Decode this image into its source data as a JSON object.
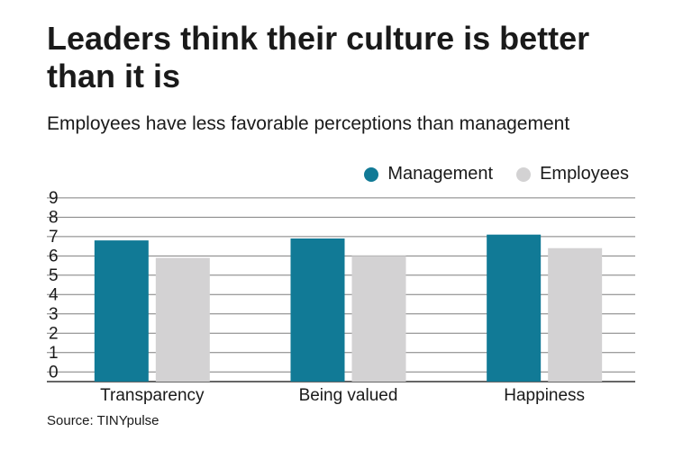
{
  "title": "Leaders think their culture is better than it is",
  "subtitle": "Employees have less favorable perceptions than management",
  "source": "Source: TINYpulse",
  "colors": {
    "management": "#117a96",
    "employees": "#d3d2d3",
    "grid": "#7f7f7f",
    "axis": "#333333"
  },
  "legend": [
    {
      "label": "Management",
      "color": "#117a96"
    },
    {
      "label": "Employees",
      "color": "#d3d2d3"
    }
  ],
  "chart_data": {
    "type": "bar",
    "title": "Leaders think their culture is better than it is",
    "subtitle": "Employees have less favorable perceptions than management",
    "categories": [
      "Transparency",
      "Being valued",
      "Happiness"
    ],
    "series": [
      {
        "name": "Management",
        "values": [
          6.8,
          6.9,
          7.1
        ],
        "color": "#117a96"
      },
      {
        "name": "Employees",
        "values": [
          5.9,
          6.0,
          6.4
        ],
        "color": "#d3d2d3"
      }
    ],
    "yticks": [
      0,
      1,
      2,
      3,
      4,
      5,
      6,
      7,
      8,
      9
    ],
    "ylim": [
      -0.5,
      8.9
    ],
    "grid": true,
    "legend_position": "top-right",
    "xlabel": "",
    "ylabel": ""
  }
}
